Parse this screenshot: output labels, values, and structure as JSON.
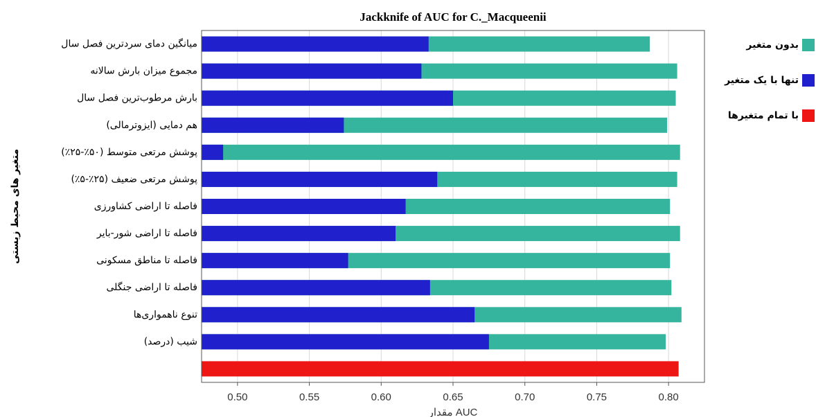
{
  "chart_data": {
    "type": "bar",
    "orientation": "horizontal",
    "title": "Jackknife of AUC for C._Macqueenii",
    "x_label": "مقدار AUC",
    "y_label": "متغیر های محیط زیستی",
    "categories": [
      "میانگین دمای سردترین فصل سال",
      "مجموع میزان بارش سالانه",
      "بارش مرطوب‌ترین فصل سال",
      "هم دمایی (ایزوترمالی)",
      "پوشش مرتعی متوسط (۵۰٪-۲۵٪)",
      "پوشش مرتعی ضعیف (۲۵٪-۵٪)",
      "فاصله تا اراضی کشاورزی",
      "فاصله تا اراضی شور-بایر",
      "فاصله تا مناطق مسکونی",
      "فاصله تا اراضی جنگلی",
      "تنوع ناهمواری‌ها",
      "شیب (درصد)",
      null
    ],
    "series": [
      {
        "name": "بدون متغیر",
        "color": "#35b59d",
        "values": [
          0.787,
          0.806,
          0.805,
          0.799,
          0.808,
          0.806,
          0.801,
          0.808,
          0.801,
          0.802,
          0.809,
          0.798,
          null
        ]
      },
      {
        "name": "تنها با یک متغیر",
        "color": "#2020cc",
        "values": [
          0.633,
          0.628,
          0.65,
          0.574,
          0.49,
          0.639,
          0.617,
          0.61,
          0.577,
          0.634,
          0.665,
          0.675,
          null
        ]
      },
      {
        "name": "با تمام متغیرها",
        "color": "#ee1515",
        "values": [
          null,
          null,
          null,
          null,
          null,
          null,
          null,
          null,
          null,
          null,
          null,
          null,
          0.807
        ]
      }
    ],
    "xlim": [
      0.475,
      0.825
    ],
    "xticks": [
      {
        "value": 0.5,
        "label": "0.50"
      },
      0.55,
      {
        "value": 0.6,
        "label": "0.60"
      },
      0.65,
      {
        "value": 0.7,
        "label": "0.70"
      },
      0.75,
      {
        "value": 0.8,
        "label": "0.80"
      }
    ],
    "grid": true,
    "legend": "right"
  }
}
